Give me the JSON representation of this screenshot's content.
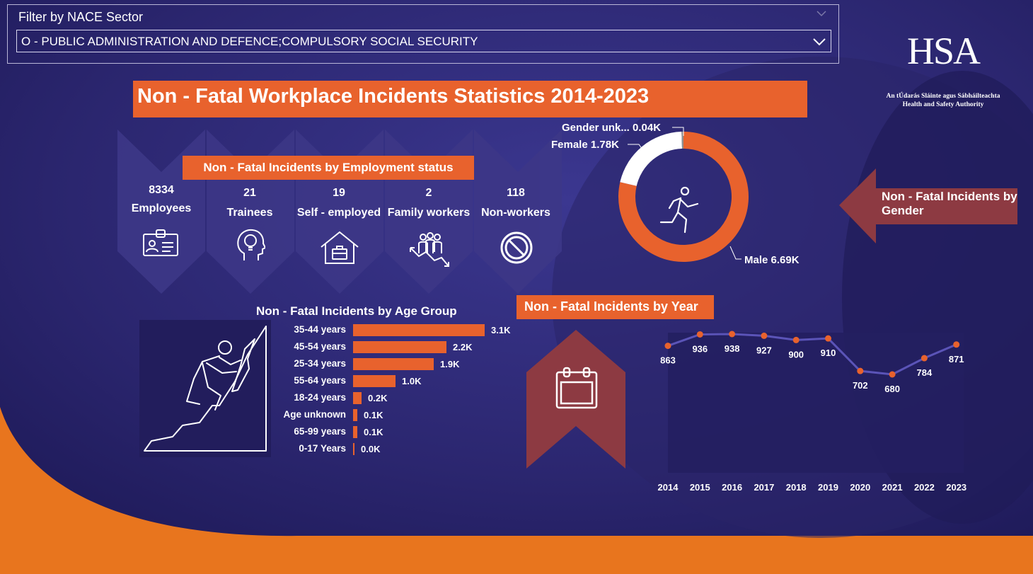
{
  "filter": {
    "title": "Filter by NACE Sector",
    "selected": "O - PUBLIC ADMINISTRATION AND DEFENCE;COMPULSORY SOCIAL SECURITY"
  },
  "logo": {
    "text": "HSA",
    "subtitle_irish": "An tÚdarás Sláinte agus Sábháilteachta",
    "subtitle_english": "Health and Safety Authority"
  },
  "main_title": "Non - Fatal Workplace Incidents Statistics 2014-2023",
  "employment": {
    "title": "Non - Fatal Incidents by Employment status",
    "items": [
      {
        "value": "8334",
        "label": "Employees",
        "icon": "id-badge-icon"
      },
      {
        "value": "21",
        "label": "Trainees",
        "icon": "head-lightbulb-icon"
      },
      {
        "value": "19",
        "label": "Self - employed",
        "icon": "house-briefcase-icon"
      },
      {
        "value": "2",
        "label": "Family workers",
        "icon": "people-growth-icon"
      },
      {
        "value": "118",
        "label": "Non-workers",
        "icon": "prohibited-icon"
      }
    ]
  },
  "colors": {
    "accent": "#e8622d",
    "background": "#2a2468",
    "panel": "#3d3787",
    "bottom_band": "#e8751e"
  },
  "chart_data": [
    {
      "type": "pie",
      "title": "Non - Fatal Incidents by Gender",
      "labels": [
        "Male",
        "Female",
        "Gender unk..."
      ],
      "values": [
        6.69,
        1.78,
        0.04
      ],
      "value_labels": [
        "6.69K",
        "1.78K",
        "0.04K"
      ],
      "colors": [
        "#e8622d",
        "#ffffff",
        "#8e8e8e"
      ]
    },
    {
      "type": "bar",
      "title": "Non - Fatal Incidents by Age Group",
      "categories": [
        "35-44 years",
        "45-54 years",
        "25-34 years",
        "55-64 years",
        "18-24 years",
        "Age unknown",
        "65-99 years",
        "0-17 Years"
      ],
      "values": [
        3.1,
        2.2,
        1.9,
        1.0,
        0.2,
        0.1,
        0.1,
        0.0
      ],
      "value_labels": [
        "3.1K",
        "2.2K",
        "1.9K",
        "1.0K",
        "0.2K",
        "0.1K",
        "0.1K",
        "0.0K"
      ],
      "xlim": [
        0,
        3.1
      ]
    },
    {
      "type": "line",
      "title": "Non - Fatal Incidents by Year",
      "x": [
        "2014",
        "2015",
        "2016",
        "2017",
        "2018",
        "2019",
        "2020",
        "2021",
        "2022",
        "2023"
      ],
      "values": [
        863,
        936,
        938,
        927,
        900,
        910,
        702,
        680,
        784,
        871
      ],
      "ylim": [
        0,
        1000
      ]
    }
  ]
}
